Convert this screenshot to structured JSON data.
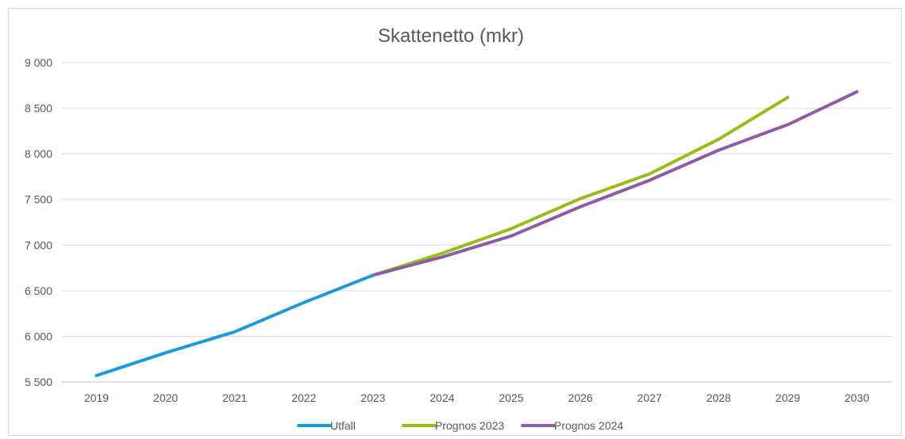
{
  "chart_data": {
    "type": "line",
    "title": "Skattenetto (mkr)",
    "xlabel": "",
    "ylabel": "",
    "categories": [
      "2019",
      "2020",
      "2021",
      "2022",
      "2023",
      "2024",
      "2025",
      "2026",
      "2027",
      "2028",
      "2029",
      "2030"
    ],
    "ylim": [
      5500,
      9000
    ],
    "yticks": [
      5500,
      6000,
      6500,
      7000,
      7500,
      8000,
      8500,
      9000
    ],
    "ytick_labels": [
      "5 500",
      "6 000",
      "6 500",
      "7 000",
      "7 500",
      "8 000",
      "8 500",
      "9 000"
    ],
    "grid": true,
    "legend_position": "bottom",
    "series": [
      {
        "name": "Utfall",
        "color": "#1a9ad6",
        "values": [
          5570,
          5820,
          6050,
          6370,
          6670,
          null,
          null,
          null,
          null,
          null,
          null,
          null
        ]
      },
      {
        "name": "Prognos 2023",
        "color": "#97bd1b",
        "values": [
          null,
          null,
          null,
          null,
          6670,
          6910,
          7180,
          7510,
          7780,
          8160,
          8620,
          null
        ]
      },
      {
        "name": "Prognos 2024",
        "color": "#8e5ba6",
        "values": [
          null,
          null,
          null,
          null,
          6670,
          6870,
          7100,
          7420,
          7710,
          8040,
          8320,
          8680
        ]
      }
    ]
  }
}
